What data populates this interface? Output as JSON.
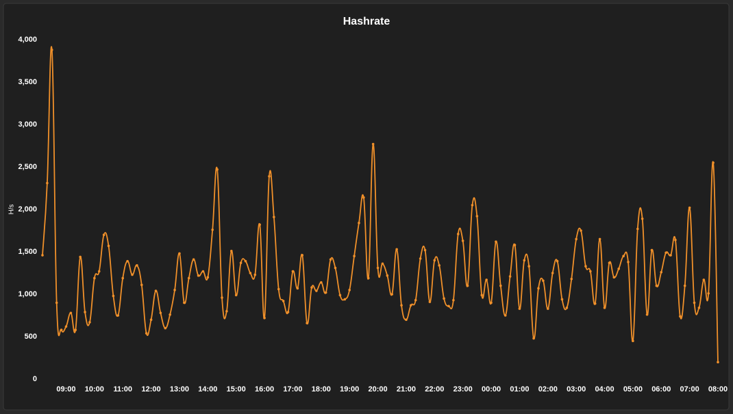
{
  "chart_data": {
    "type": "line",
    "title": "Hashrate",
    "y_label": "H/s",
    "categories": [
      null,
      null,
      null,
      null,
      null,
      "09:00",
      null,
      null,
      null,
      null,
      null,
      "10:00",
      null,
      null,
      null,
      null,
      null,
      "11:00",
      null,
      null,
      null,
      null,
      null,
      "12:00",
      null,
      null,
      null,
      null,
      null,
      "13:00",
      null,
      null,
      null,
      null,
      null,
      "14:00",
      null,
      null,
      null,
      null,
      null,
      "15:00",
      null,
      null,
      null,
      null,
      null,
      "16:00",
      null,
      null,
      null,
      null,
      null,
      "17:00",
      null,
      null,
      null,
      null,
      null,
      "18:00",
      null,
      null,
      null,
      null,
      null,
      "19:00",
      null,
      null,
      null,
      null,
      null,
      "20:00",
      null,
      null,
      null,
      null,
      null,
      "21:00",
      null,
      null,
      null,
      null,
      null,
      "22:00",
      null,
      null,
      null,
      null,
      null,
      "23:00",
      null,
      null,
      null,
      null,
      null,
      "00:00",
      null,
      null,
      null,
      null,
      null,
      "01:00",
      null,
      null,
      null,
      null,
      null,
      "02:00",
      null,
      null,
      null,
      null,
      null,
      "03:00",
      null,
      null,
      null,
      null,
      null,
      "04:00",
      null,
      null,
      null,
      null,
      null,
      "05:00",
      null,
      null,
      null,
      null,
      null,
      "06:00",
      null,
      null,
      null,
      null,
      null,
      "07:00",
      null,
      null,
      null,
      null,
      null,
      "08:00"
    ],
    "series": [
      {
        "name": "Hashrate",
        "color": "#f0902a",
        "values": [
          1460,
          2310,
          3880,
          900,
          580,
          620,
          780,
          580,
          1440,
          790,
          670,
          1190,
          1270,
          1700,
          1570,
          980,
          750,
          1190,
          1390,
          1230,
          1340,
          1110,
          540,
          700,
          1040,
          780,
          600,
          760,
          1050,
          1480,
          900,
          1190,
          1410,
          1220,
          1270,
          1200,
          1760,
          2470,
          960,
          800,
          1510,
          990,
          1370,
          1390,
          1250,
          1230,
          1820,
          720,
          2390,
          1910,
          1060,
          920,
          790,
          1270,
          1070,
          1460,
          660,
          1080,
          1040,
          1140,
          1020,
          1410,
          1310,
          990,
          940,
          1050,
          1450,
          1840,
          2140,
          1190,
          2770,
          1310,
          1360,
          1220,
          1000,
          1530,
          870,
          700,
          870,
          930,
          1420,
          1520,
          910,
          1400,
          1340,
          950,
          860,
          930,
          1710,
          1630,
          1100,
          2050,
          1920,
          990,
          1170,
          900,
          1620,
          1100,
          750,
          1210,
          1580,
          830,
          1400,
          1330,
          480,
          1070,
          1160,
          830,
          1250,
          1390,
          940,
          840,
          1180,
          1650,
          1750,
          1330,
          1270,
          890,
          1650,
          840,
          1370,
          1200,
          1300,
          1450,
          1380,
          450,
          1770,
          1890,
          760,
          1520,
          1100,
          1260,
          1490,
          1460,
          1640,
          740,
          1100,
          2020,
          900,
          840,
          1170,
          1010,
          2550,
          200
        ]
      }
    ],
    "ylim": [
      0,
      4000
    ],
    "yticks": [
      0,
      500,
      {
        "value": 1000,
        "label": "1,000"
      },
      {
        "value": 1500,
        "label": "1,500"
      },
      {
        "value": 2000,
        "label": "2,000"
      },
      {
        "value": 2500,
        "label": "2,500"
      },
      {
        "value": 3000,
        "label": "3,000"
      },
      {
        "value": 3500,
        "label": "3,500"
      },
      {
        "value": 4000,
        "label": "4,000"
      }
    ],
    "grid": false
  }
}
